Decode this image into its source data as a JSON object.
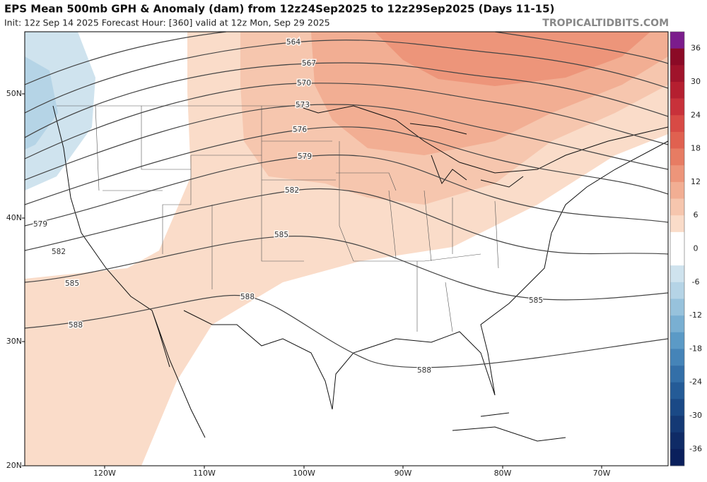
{
  "header": {
    "title": "EPS Mean 500mb GPH & Anomaly (dam) from 12z24Sep2025 to 12z29Sep2025 (Days 11-15)",
    "subtitle": "Init: 12z Sep 14 2025   Forecast Hour: [360]   valid at 12z Mon, Sep 29 2025",
    "watermark": "TROPICALTIDBITS.COM"
  },
  "map": {
    "lat_labels": [
      "50N",
      "40N",
      "30N",
      "20N"
    ],
    "lon_labels": [
      "120W",
      "110W",
      "100W",
      "90W",
      "80W",
      "70W"
    ],
    "contour_labels": [
      564,
      567,
      570,
      573,
      576,
      579,
      582,
      585,
      588,
      579,
      582,
      585,
      588,
      585,
      588
    ]
  },
  "colorbar": {
    "labels": [
      36,
      30,
      24,
      18,
      12,
      6,
      0,
      -6,
      -12,
      -18,
      -24,
      -30,
      -36
    ],
    "colors": [
      "#7b1c8c",
      "#8b0a26",
      "#a0132b",
      "#b51f30",
      "#c8313a",
      "#d84a45",
      "#e06150",
      "#e77c63",
      "#ed957a",
      "#f2ae93",
      "#f6c6ae",
      "#fadcc9",
      "#ffffff",
      "#ffffff",
      "#cfe3ee",
      "#b5d4e6",
      "#97c2dc",
      "#79afd2",
      "#5b9ac6",
      "#4584b8",
      "#336fa8",
      "#245b97",
      "#1a4986",
      "#143975",
      "#0f2b66",
      "#0a1f5c"
    ]
  }
}
